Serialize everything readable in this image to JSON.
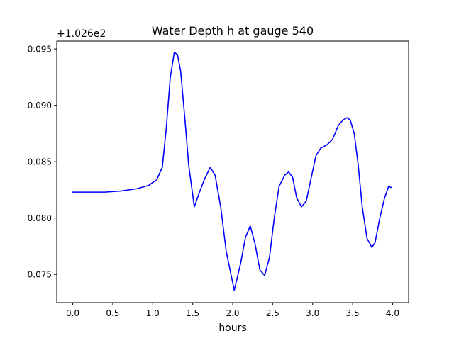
{
  "chart_data": {
    "type": "line",
    "title": "Water Depth h at gauge 540",
    "xlabel": "hours",
    "ylabel": "",
    "offset_label": "+1.026e2",
    "xlim": [
      -0.2,
      4.2
    ],
    "ylim": [
      0.0725,
      0.0957
    ],
    "xticks": [
      0.0,
      0.5,
      1.0,
      1.5,
      2.0,
      2.5,
      3.0,
      3.5,
      4.0
    ],
    "xtick_labels": [
      "0.0",
      "0.5",
      "1.0",
      "1.5",
      "2.0",
      "2.5",
      "3.0",
      "3.5",
      "4.0"
    ],
    "yticks": [
      0.075,
      0.08,
      0.085,
      0.09,
      0.095
    ],
    "ytick_labels": [
      "0.075",
      "0.080",
      "0.085",
      "0.090",
      "0.095"
    ],
    "grid": false,
    "legend": "none",
    "series": [
      {
        "color": "#0000ff",
        "x": [
          0.0,
          0.2,
          0.4,
          0.6,
          0.8,
          0.95,
          1.05,
          1.12,
          1.17,
          1.22,
          1.27,
          1.31,
          1.35,
          1.4,
          1.45,
          1.52,
          1.58,
          1.65,
          1.72,
          1.78,
          1.85,
          1.92,
          2.02,
          2.1,
          2.16,
          2.22,
          2.28,
          2.34,
          2.4,
          2.46,
          2.52,
          2.58,
          2.65,
          2.7,
          2.75,
          2.8,
          2.86,
          2.92,
          2.98,
          3.04,
          3.1,
          3.18,
          3.25,
          3.32,
          3.38,
          3.43,
          3.47,
          3.52,
          3.57,
          3.62,
          3.68,
          3.74,
          3.78,
          3.84,
          3.9,
          3.95,
          3.99
        ],
        "y": [
          0.0823,
          0.0823,
          0.0823,
          0.0824,
          0.0826,
          0.0829,
          0.0834,
          0.0845,
          0.088,
          0.0925,
          0.0947,
          0.0945,
          0.093,
          0.089,
          0.0847,
          0.081,
          0.0822,
          0.0835,
          0.0845,
          0.0838,
          0.081,
          0.077,
          0.0736,
          0.076,
          0.0783,
          0.0793,
          0.0777,
          0.0754,
          0.0749,
          0.0765,
          0.08,
          0.0828,
          0.0838,
          0.0841,
          0.0836,
          0.0818,
          0.081,
          0.0815,
          0.0835,
          0.0855,
          0.0862,
          0.0865,
          0.087,
          0.0882,
          0.0887,
          0.0889,
          0.0887,
          0.0875,
          0.0847,
          0.081,
          0.0782,
          0.0774,
          0.0778,
          0.08,
          0.0818,
          0.0828,
          0.0827
        ]
      }
    ]
  }
}
